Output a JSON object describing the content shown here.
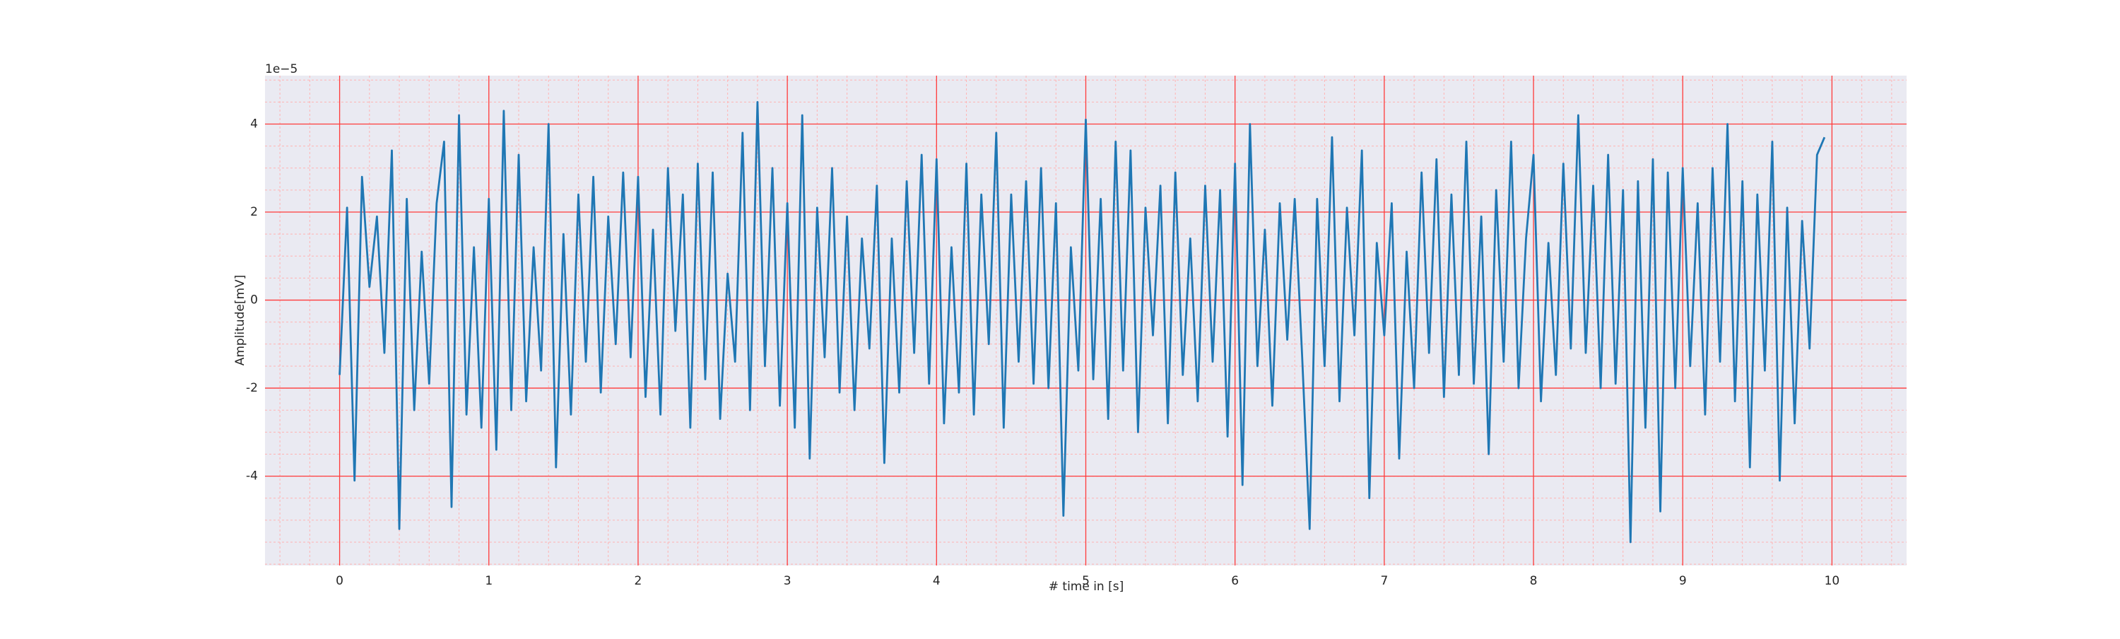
{
  "chart_data": {
    "type": "line",
    "xlabel": "# time in [s]",
    "ylabel": "Amplitude[mV]",
    "y_offset_label": "1e−5",
    "color": "#1f77b4",
    "background": "#eaeaf2",
    "grid": true,
    "grid_color": "#ff3b3b",
    "minor_grid_color": "#ffb3b3",
    "minor_xstep": 0.2,
    "minor_ystep": 0.5,
    "xlim": [
      -0.5,
      10.5
    ],
    "xticks": [
      0,
      1,
      2,
      3,
      4,
      5,
      6,
      7,
      8,
      9,
      10
    ],
    "ylim": [
      -6.03,
      5.1
    ],
    "yticks": [
      -4,
      -2,
      0,
      2,
      4
    ],
    "x": [
      0,
      0.05,
      0.1,
      0.15,
      0.2,
      0.25,
      0.3,
      0.35,
      0.4,
      0.45,
      0.5,
      0.55,
      0.6,
      0.65,
      0.7,
      0.75,
      0.8,
      0.85,
      0.9,
      0.95,
      1,
      1.05,
      1.1,
      1.15,
      1.2,
      1.25,
      1.3,
      1.35,
      1.4,
      1.45,
      1.5,
      1.55,
      1.6,
      1.65,
      1.7,
      1.75,
      1.8,
      1.85,
      1.9,
      1.95,
      2,
      2.05,
      2.1,
      2.15,
      2.2,
      2.25,
      2.3,
      2.35,
      2.4,
      2.45,
      2.5,
      2.55,
      2.6,
      2.65,
      2.7,
      2.75,
      2.8,
      2.85,
      2.9,
      2.95,
      3,
      3.05,
      3.1,
      3.15,
      3.2,
      3.25,
      3.3,
      3.35,
      3.4,
      3.45,
      3.5,
      3.55,
      3.6,
      3.65,
      3.7,
      3.75,
      3.8,
      3.85,
      3.9,
      3.95,
      4,
      4.05,
      4.1,
      4.15,
      4.2,
      4.25,
      4.3,
      4.35,
      4.4,
      4.45,
      4.5,
      4.55,
      4.6,
      4.65,
      4.7,
      4.75,
      4.8,
      4.85,
      4.9,
      4.95,
      5,
      5.05,
      5.1,
      5.15,
      5.2,
      5.25,
      5.3,
      5.35,
      5.4,
      5.45,
      5.5,
      5.55,
      5.6,
      5.65,
      5.7,
      5.75,
      5.8,
      5.85,
      5.9,
      5.95,
      6,
      6.05,
      6.1,
      6.15,
      6.2,
      6.25,
      6.3,
      6.35,
      6.4,
      6.45,
      6.5,
      6.55,
      6.6,
      6.65,
      6.7,
      6.75,
      6.8,
      6.85,
      6.9,
      6.95,
      7,
      7.05,
      7.1,
      7.15,
      7.2,
      7.25,
      7.3,
      7.35,
      7.4,
      7.45,
      7.5,
      7.55,
      7.6,
      7.65,
      7.7,
      7.75,
      7.8,
      7.85,
      7.9,
      7.95,
      8,
      8.05,
      8.1,
      8.15,
      8.2,
      8.25,
      8.3,
      8.35,
      8.4,
      8.45,
      8.5,
      8.55,
      8.6,
      8.65,
      8.7,
      8.75,
      8.8,
      8.85,
      8.9,
      8.95,
      9,
      9.05,
      9.1,
      9.15,
      9.2,
      9.25,
      9.3,
      9.35,
      9.4,
      9.45,
      9.5,
      9.55,
      9.6,
      9.65,
      9.7,
      9.75,
      9.8,
      9.85,
      9.9,
      9.95
    ],
    "values": [
      -1.7,
      2.1,
      -4.1,
      2.8,
      0.3,
      1.9,
      -1.2,
      3.4,
      -5.2,
      2.3,
      -2.5,
      1.1,
      -1.9,
      2.2,
      3.6,
      -4.7,
      4.2,
      -2.6,
      1.2,
      -2.9,
      2.3,
      -3.4,
      4.3,
      -2.5,
      3.3,
      -2.3,
      1.2,
      -1.6,
      4.0,
      -3.8,
      1.5,
      -2.6,
      2.4,
      -1.4,
      2.8,
      -2.1,
      1.9,
      -1.0,
      2.9,
      -1.3,
      2.8,
      -2.2,
      1.6,
      -2.6,
      3.0,
      -0.7,
      2.4,
      -2.9,
      3.1,
      -1.8,
      2.9,
      -2.7,
      0.6,
      -1.4,
      3.8,
      -2.5,
      4.5,
      -1.5,
      3.0,
      -2.4,
      2.2,
      -2.9,
      4.2,
      -3.6,
      2.1,
      -1.3,
      3.0,
      -2.1,
      1.9,
      -2.5,
      1.4,
      -1.1,
      2.6,
      -3.7,
      1.4,
      -2.1,
      2.7,
      -1.2,
      3.3,
      -1.9,
      3.2,
      -2.8,
      1.2,
      -2.1,
      3.1,
      -2.6,
      2.4,
      -1.0,
      3.8,
      -2.9,
      2.4,
      -1.4,
      2.7,
      -1.9,
      3.0,
      -2.0,
      2.2,
      -4.9,
      1.2,
      -1.6,
      4.1,
      -1.8,
      2.3,
      -2.7,
      3.6,
      -1.6,
      3.4,
      -3.0,
      2.1,
      -0.8,
      2.6,
      -2.8,
      2.9,
      -1.7,
      1.4,
      -2.3,
      2.6,
      -1.4,
      2.5,
      -3.1,
      3.1,
      -4.2,
      4.0,
      -1.5,
      1.6,
      -2.4,
      2.2,
      -0.9,
      2.3,
      -1.3,
      -5.2,
      2.3,
      -1.5,
      3.7,
      -2.3,
      2.1,
      -0.8,
      3.4,
      -4.5,
      1.3,
      -0.8,
      2.2,
      -3.6,
      1.1,
      -2.0,
      2.9,
      -1.2,
      3.2,
      -2.2,
      2.4,
      -1.7,
      3.6,
      -1.9,
      1.9,
      -3.5,
      2.5,
      -1.4,
      3.6,
      -2.0,
      1.4,
      3.3,
      -2.3,
      1.3,
      -1.7,
      3.1,
      -1.1,
      4.2,
      -1.2,
      2.6,
      -2.0,
      3.3,
      -1.9,
      2.5,
      -5.5,
      2.7,
      -2.9,
      3.2,
      -4.8,
      2.9,
      -2.0,
      3.0,
      -1.5,
      2.2,
      -2.6,
      3.0,
      -1.4,
      4.0,
      -2.3,
      2.7,
      -3.8,
      2.4,
      -1.6,
      3.6,
      -4.1,
      2.1,
      -2.8,
      1.8,
      -1.1,
      3.3,
      3.7
    ]
  }
}
